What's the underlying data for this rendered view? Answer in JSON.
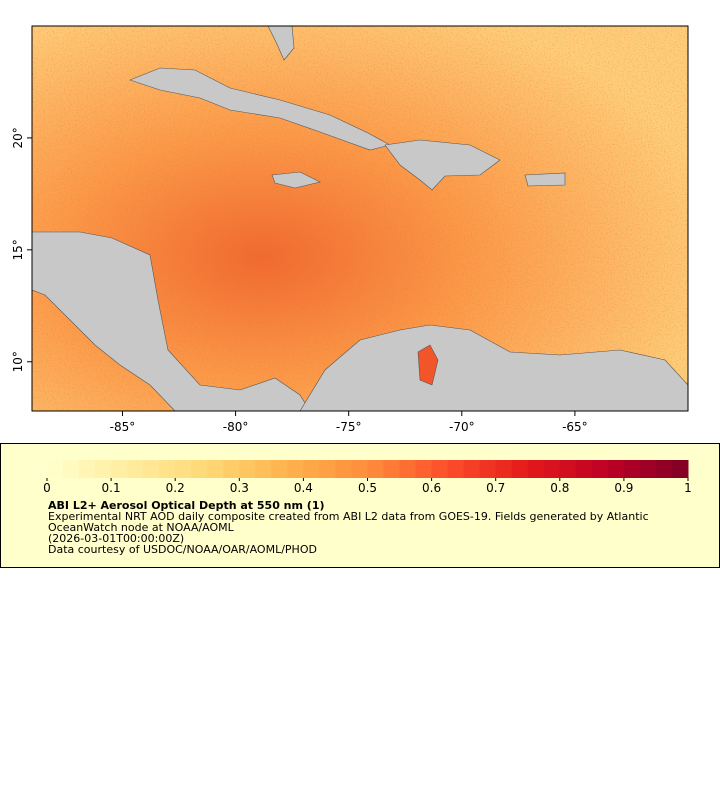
{
  "map": {
    "xlim": [
      -89,
      -60
    ],
    "ylim": [
      7.8,
      25
    ],
    "xticks": [
      {
        "value": -85,
        "label": "-85°"
      },
      {
        "value": -80,
        "label": "-80°"
      },
      {
        "value": -75,
        "label": "-75°"
      },
      {
        "value": -70,
        "label": "-70°"
      },
      {
        "value": -65,
        "label": "-65°"
      }
    ],
    "yticks": [
      {
        "value": 10,
        "label": "10°"
      },
      {
        "value": 15,
        "label": "15°"
      },
      {
        "value": 20,
        "label": "20°"
      }
    ]
  },
  "colorbar": {
    "lim": [
      0,
      1
    ],
    "ticks": [
      0,
      0.1,
      0.2,
      0.3,
      0.4,
      0.5,
      0.6,
      0.7,
      0.8,
      0.9,
      1
    ],
    "colors": [
      "#ffffcc",
      "#ffeda0",
      "#fed976",
      "#feb24c",
      "#fd8d3c",
      "#fc4e2a",
      "#e31a1c",
      "#bd0026",
      "#800026"
    ]
  },
  "legend": {
    "title": "ABI L2+ Aerosol Optical Depth at 550 nm (1)",
    "description": "Experimental NRT AOD daily composite created from ABI L2 data from GOES-19. Fields generated by Atlantic OceanWatch node at NOAA/AOML",
    "date": "(2026-03-01T00:00:00Z)",
    "credit": "Data courtesy of USDOC/NOAA/OAR/AOML/PHOD"
  }
}
